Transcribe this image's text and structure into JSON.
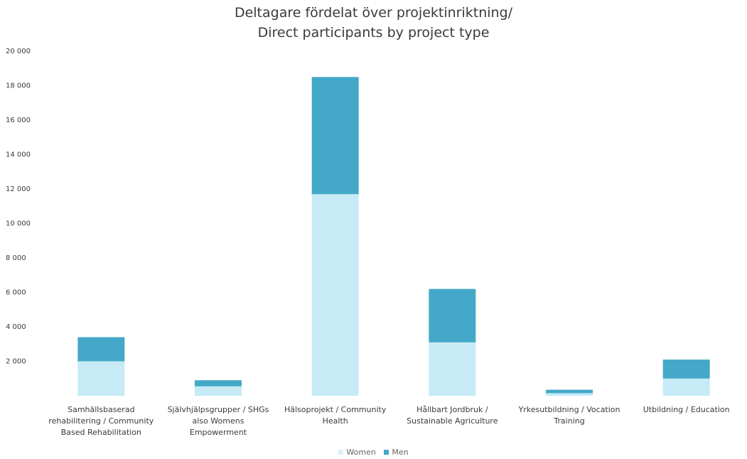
{
  "chart_data": {
    "type": "bar",
    "stacked": true,
    "title": "Deltagare fördelat över projektinriktning/ Direct participants by project type",
    "title_lines": [
      "Deltagare fördelat över projektinriktning/",
      "Direct participants by project type"
    ],
    "xlabel": "",
    "ylabel": "",
    "ylim": [
      0,
      20000
    ],
    "yticks": [
      0,
      2000,
      4000,
      6000,
      8000,
      10000,
      12000,
      14000,
      16000,
      18000,
      20000
    ],
    "ytick_labels": [
      "",
      "2 000",
      "4 000",
      "6 000",
      "8 000",
      "10 000",
      "12 000",
      "14 000",
      "16 000",
      "18 000",
      "20 000"
    ],
    "categories": [
      [
        "Samhällsbaserad",
        "rehabilitering / Community",
        "Based Rehabilitation"
      ],
      [
        "Självhjälpsgrupper / SHGs",
        "also Womens",
        "Empowerment"
      ],
      [
        "Hälsoprojekt / Community",
        "Health"
      ],
      [
        "Hållbart Jordbruk /",
        "Sustainable Agriculture"
      ],
      [
        "Yrkesutbildning / Vocation",
        "Training"
      ],
      [
        "Utbildning / Education"
      ]
    ],
    "series": [
      {
        "name": "Women",
        "color": "#c6ebf6",
        "values": [
          2000,
          550,
          11700,
          3100,
          150,
          1000
        ]
      },
      {
        "name": "Men",
        "color": "#44a8c8",
        "values": [
          1400,
          350,
          6800,
          3100,
          200,
          1100
        ]
      }
    ],
    "grid": false,
    "legend_position": "bottom"
  }
}
